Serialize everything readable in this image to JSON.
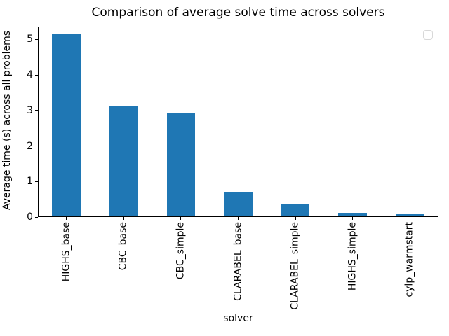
{
  "chart_data": {
    "type": "bar",
    "title": "Comparison of average solve time across solvers",
    "xlabel": "solver",
    "ylabel": "Average time (s) across all problems",
    "categories": [
      "HIGHS_base",
      "CBC_base",
      "CBC_simple",
      "CLARABEL_base",
      "CLARABEL_simple",
      "HIGHS_simple",
      "cylp_warmstart"
    ],
    "values": [
      5.12,
      3.09,
      2.89,
      0.69,
      0.35,
      0.1,
      0.08
    ],
    "yticks": [
      0,
      1,
      2,
      3,
      4,
      5
    ],
    "ylim": [
      0,
      5.36
    ],
    "bar_color": "#1f77b4",
    "grid": false,
    "legend": {
      "visible": true,
      "position": "upper right",
      "entries": []
    }
  }
}
